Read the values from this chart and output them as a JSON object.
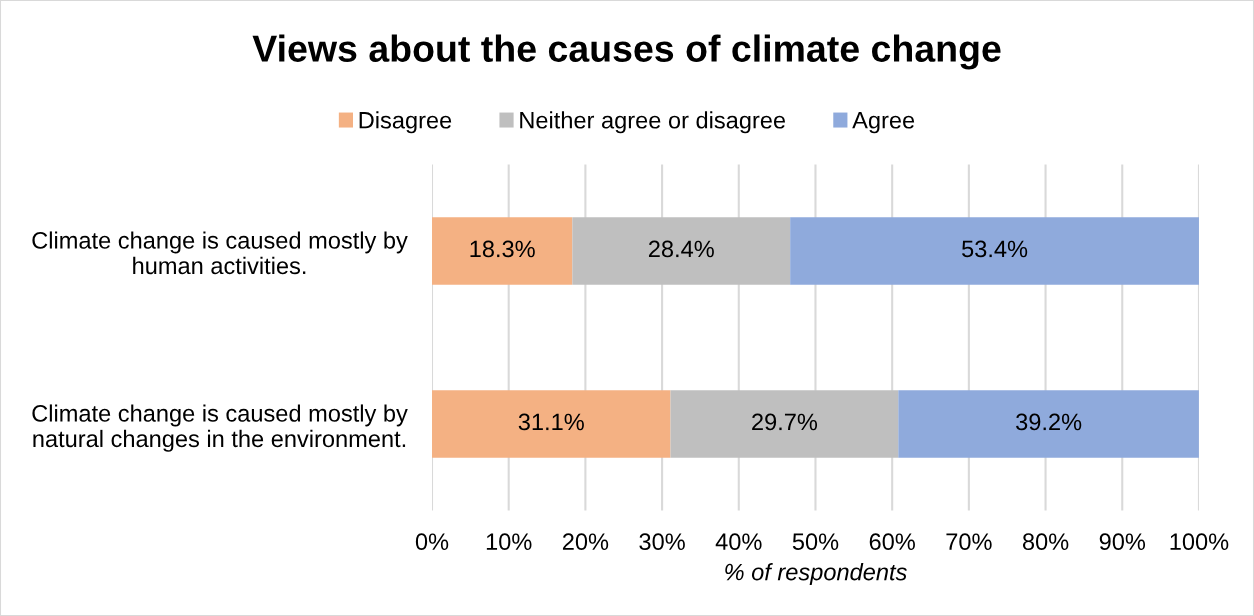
{
  "chart_data": {
    "type": "bar",
    "orientation": "horizontal",
    "stacked": true,
    "title": "Views about the causes of climate change",
    "xlabel": "% of respondents",
    "categories": [
      "Climate change is caused mostly by\nhuman activities.",
      "Climate change is caused mostly by\nnatural changes in the environment."
    ],
    "series": [
      {
        "name": "Disagree",
        "color": "#f4b183",
        "values": [
          18.3,
          31.1
        ],
        "value_labels": [
          "18.3%",
          "31.1%"
        ]
      },
      {
        "name": "Neither agree or disagree",
        "color": "#bfbfbf",
        "values": [
          28.4,
          29.7
        ],
        "value_labels": [
          "28.4%",
          "29.7%"
        ]
      },
      {
        "name": "Agree",
        "color": "#8faadc",
        "values": [
          53.4,
          39.2
        ],
        "value_labels": [
          "53.4%",
          "39.2%"
        ]
      }
    ],
    "xlim": [
      0,
      100
    ],
    "xticks": [
      {
        "value": 0,
        "label": "0%"
      },
      {
        "value": 10,
        "label": "10%"
      },
      {
        "value": 20,
        "label": "20%"
      },
      {
        "value": 30,
        "label": "30%"
      },
      {
        "value": 40,
        "label": "40%"
      },
      {
        "value": 50,
        "label": "50%"
      },
      {
        "value": 60,
        "label": "60%"
      },
      {
        "value": 70,
        "label": "70%"
      },
      {
        "value": 80,
        "label": "80%"
      },
      {
        "value": 90,
        "label": "90%"
      },
      {
        "value": 100,
        "label": "100%"
      }
    ],
    "grid": "x",
    "legend": "top"
  }
}
